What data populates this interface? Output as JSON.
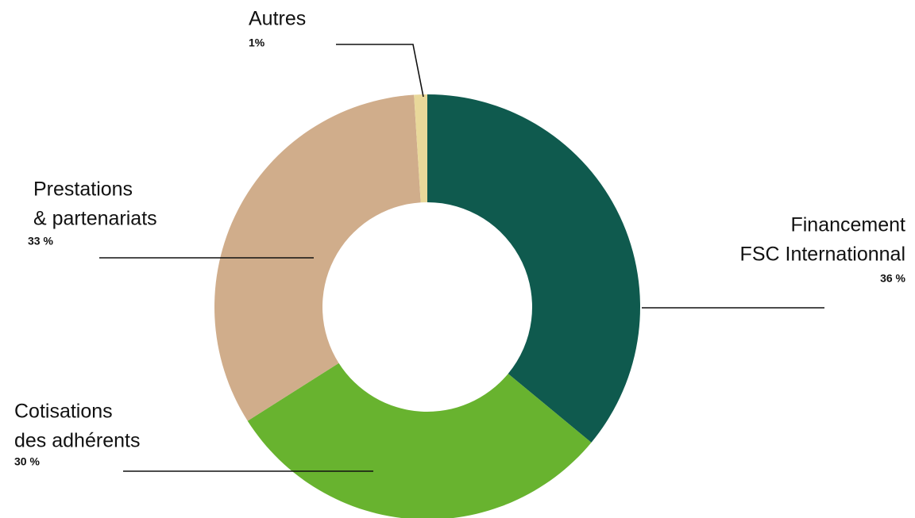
{
  "chart_data": {
    "type": "donut",
    "categories": [
      [
        "Financement",
        "FSC Internationnal"
      ],
      [
        "Cotisations",
        "des adhérents"
      ],
      [
        "Prestations",
        "& partenariats"
      ],
      [
        "Autres"
      ]
    ],
    "values": [
      36,
      30,
      33,
      1
    ],
    "value_labels": [
      "36 %",
      "30 %",
      "33 %",
      "1%"
    ],
    "colors": [
      "#0f5a4e",
      "#68b32f",
      "#d0ad8b",
      "#e9d89a"
    ]
  }
}
